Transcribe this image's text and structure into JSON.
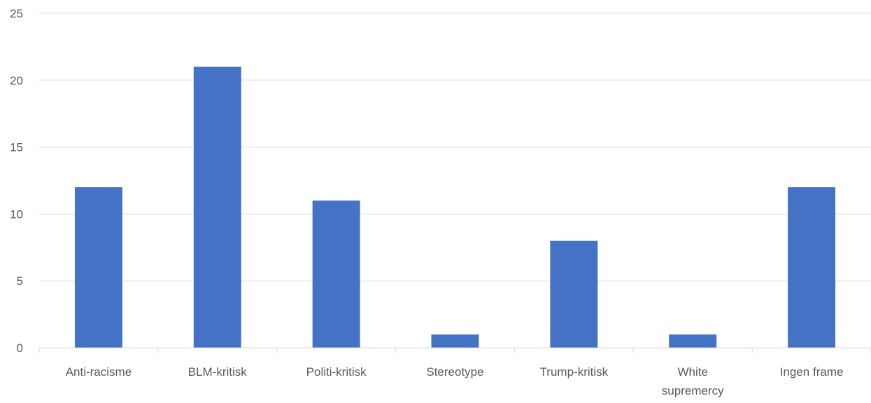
{
  "chart_data": {
    "type": "bar",
    "categories": [
      "Anti-racisme",
      "BLM-kritisk",
      "Politi-kritisk",
      "Stereotype",
      "Trump-kritisk",
      "White supremercy",
      "Ingen frame"
    ],
    "category_lines": [
      [
        "Anti-racisme"
      ],
      [
        "BLM-kritisk"
      ],
      [
        "Politi-kritisk"
      ],
      [
        "Stereotype"
      ],
      [
        "Trump-kritisk"
      ],
      [
        "White",
        "supremercy"
      ],
      [
        "Ingen frame"
      ]
    ],
    "values": [
      12,
      21,
      11,
      1,
      8,
      1,
      12
    ],
    "title": "",
    "xlabel": "",
    "ylabel": "",
    "ylim": [
      0,
      25
    ],
    "yticks": [
      0,
      5,
      10,
      15,
      20,
      25
    ],
    "grid": true,
    "legend": "none",
    "bar_color": "#4472C4",
    "grid_color": "#D9D9D9",
    "text_color": "#595959"
  }
}
